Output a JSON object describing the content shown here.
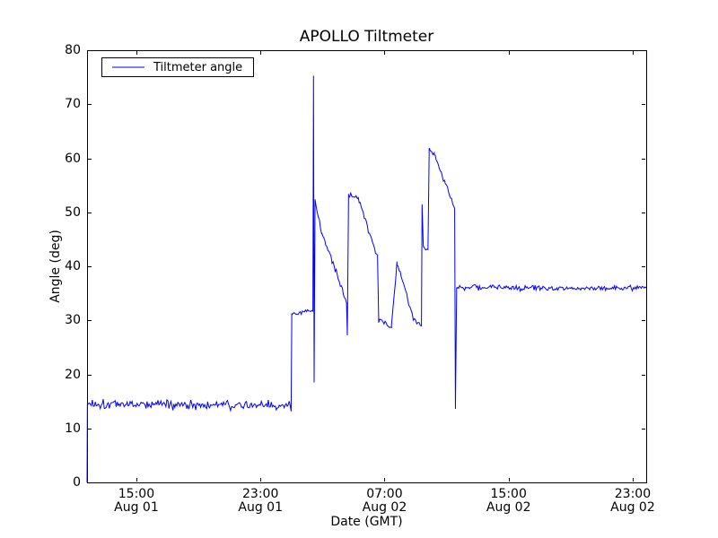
{
  "chart_data": {
    "type": "line",
    "title": "APOLLO Tiltmeter",
    "xlabel": "Date (GMT)",
    "ylabel": "Angle (deg)",
    "ylim": [
      0,
      80
    ],
    "yticks": [
      0,
      10,
      20,
      30,
      40,
      50,
      60,
      70,
      80
    ],
    "x_unit": "hours since Aug 01 00:00 GMT",
    "xlim": [
      11.82,
      47.87
    ],
    "xticks": [
      {
        "t": 15,
        "time": "15:00",
        "date": "Aug 01"
      },
      {
        "t": 23,
        "time": "23:00",
        "date": "Aug 01"
      },
      {
        "t": 31,
        "time": "07:00",
        "date": "Aug 02"
      },
      {
        "t": 39,
        "time": "15:00",
        "date": "Aug 02"
      },
      {
        "t": 47,
        "time": "23:00",
        "date": "Aug 02"
      }
    ],
    "grid": false,
    "legend": {
      "position": "upper left",
      "entries": [
        "Tiltmeter angle"
      ]
    },
    "line_color": "#0000ff",
    "axis_color": "#000000",
    "background": "#ffffff",
    "noise_seed": 1337,
    "series": [
      {
        "name": "Tiltmeter angle",
        "color": "#0000ff",
        "segments": [
          {
            "t0": 11.82,
            "t1": 11.84,
            "v0": 0.0,
            "v1": 14.6,
            "noise": 0
          },
          {
            "t0": 11.84,
            "t1": 24.98,
            "v0": 14.6,
            "v1": 14.2,
            "noise": 0.65
          },
          {
            "t0": 24.98,
            "t1": 25.02,
            "v0": 14.2,
            "v1": 31.3,
            "noise": 0
          },
          {
            "t0": 25.02,
            "t1": 26.38,
            "v0": 31.3,
            "v1": 31.6,
            "noise": 0.35
          },
          {
            "t0": 26.38,
            "t1": 26.42,
            "v0": 31.6,
            "v1": 75.3,
            "noise": 0
          },
          {
            "t0": 26.42,
            "t1": 26.46,
            "v0": 75.3,
            "v1": 18.5,
            "noise": 0
          },
          {
            "t0": 26.46,
            "t1": 26.52,
            "v0": 18.5,
            "v1": 52.2,
            "noise": 0
          },
          {
            "t0": 26.52,
            "t1": 26.95,
            "v0": 52.2,
            "v1": 46.3,
            "noise": 0.4
          },
          {
            "t0": 26.95,
            "t1": 28.55,
            "v0": 46.3,
            "v1": 33.3,
            "noise": 0.45
          },
          {
            "t0": 28.55,
            "t1": 28.6,
            "v0": 33.3,
            "v1": 27.2,
            "noise": 0
          },
          {
            "t0": 28.6,
            "t1": 28.68,
            "v0": 27.2,
            "v1": 53.4,
            "noise": 0
          },
          {
            "t0": 28.68,
            "t1": 29.3,
            "v0": 53.4,
            "v1": 52.6,
            "noise": 0.35
          },
          {
            "t0": 29.3,
            "t1": 30.55,
            "v0": 52.6,
            "v1": 41.6,
            "noise": 0.4
          },
          {
            "t0": 30.55,
            "t1": 30.62,
            "v0": 41.6,
            "v1": 30.6,
            "noise": 0
          },
          {
            "t0": 30.62,
            "t1": 31.45,
            "v0": 30.0,
            "v1": 28.9,
            "noise": 0.45
          },
          {
            "t0": 31.45,
            "t1": 31.8,
            "v0": 28.9,
            "v1": 40.7,
            "noise": 0.3
          },
          {
            "t0": 31.8,
            "t1": 32.85,
            "v0": 40.7,
            "v1": 30.6,
            "noise": 0.4
          },
          {
            "t0": 32.85,
            "t1": 33.38,
            "v0": 30.6,
            "v1": 29.3,
            "noise": 0.45
          },
          {
            "t0": 33.38,
            "t1": 33.42,
            "v0": 29.3,
            "v1": 51.5,
            "noise": 0
          },
          {
            "t0": 33.42,
            "t1": 33.5,
            "v0": 51.5,
            "v1": 43.6,
            "noise": 0
          },
          {
            "t0": 33.5,
            "t1": 33.8,
            "v0": 43.6,
            "v1": 43.0,
            "noise": 0.3
          },
          {
            "t0": 33.8,
            "t1": 33.88,
            "v0": 43.0,
            "v1": 61.8,
            "noise": 0
          },
          {
            "t0": 33.88,
            "t1": 34.2,
            "v0": 61.8,
            "v1": 60.8,
            "noise": 0.3
          },
          {
            "t0": 34.2,
            "t1": 35.52,
            "v0": 60.8,
            "v1": 50.8,
            "noise": 0.35
          },
          {
            "t0": 35.52,
            "t1": 35.57,
            "v0": 50.8,
            "v1": 13.6,
            "noise": 0
          },
          {
            "t0": 35.57,
            "t1": 35.65,
            "v0": 13.6,
            "v1": 36.1,
            "noise": 0
          },
          {
            "t0": 35.65,
            "t1": 47.87,
            "v0": 36.1,
            "v1": 36.0,
            "noise": 0.4
          }
        ]
      }
    ]
  }
}
